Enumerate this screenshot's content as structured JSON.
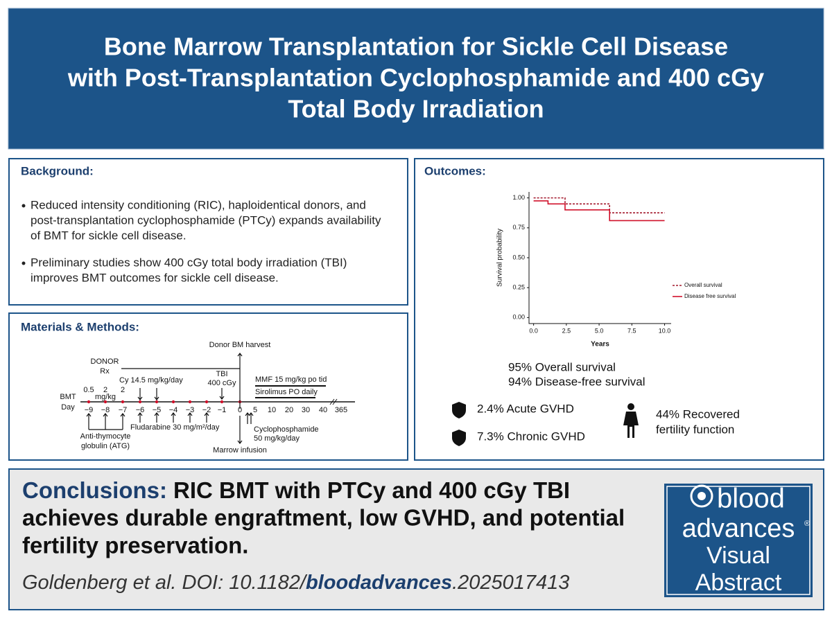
{
  "header": {
    "title_lines": [
      "Bone Marrow Transplantation for Sickle Cell Disease",
      "with Post-Transplantation Cyclophosphamide and 400 cGy",
      "Total Body Irradiation"
    ]
  },
  "background": {
    "heading": "Background:",
    "bullets": [
      [
        "Reduced intensity conditioning (RIC), haploidentical donors, and",
        "post-transplantation cyclophosphamide (PTCy) expands availability",
        "of BMT for sickle cell disease."
      ],
      [
        "Preliminary studies show 400 cGy total body irradiation (TBI)",
        "improves BMT outcomes for sickle cell disease."
      ]
    ]
  },
  "methods": {
    "heading": "Materials & Methods:",
    "diagram": {
      "labels": [
        "Donor BM harvest",
        "DONOR",
        "Rx",
        "TBI",
        "400 cGy",
        "0.5",
        "2",
        "mg/kg",
        "Cy 14.5 mg/kg/day",
        "2",
        "MMF 15 mg/kg po tid",
        "Sirolimus PO daily",
        "BMT",
        "Day",
        "Fludarabine 30 mg/m²/day",
        "Anti-thymocyte",
        "globulin (ATG)",
        "Cyclophosphamide",
        "50 mg/kg/day",
        "Marrow infusion"
      ],
      "days": [
        "−9",
        "−8",
        "−7",
        "−6",
        "−5",
        "−4",
        "−3",
        "−2",
        "−1",
        "0",
        "5",
        "10",
        "20",
        "30",
        "40",
        "365"
      ]
    }
  },
  "outcomes": {
    "heading": "Outcomes:",
    "survival": [
      "95% Overall survival",
      "94% Disease-free survival"
    ],
    "gvhd": [
      "2.4% Acute GVHD",
      "7.3% Chronic GVHD"
    ],
    "fertility": [
      "44% Recovered",
      "fertility function"
    ]
  },
  "chart_data": {
    "type": "step",
    "xlabel": "Years",
    "ylabel": "Survival probability",
    "xlim": [
      -0.35,
      10.5
    ],
    "ylim": [
      -0.05,
      1.05
    ],
    "xticks": [
      {
        "value": 0,
        "label": "0.0"
      },
      {
        "value": 2.5,
        "label": "2.5"
      },
      {
        "value": 5,
        "label": "5.0"
      },
      {
        "value": 7.5,
        "label": "7.5"
      },
      {
        "value": 10,
        "label": "10.0"
      }
    ],
    "yticks": [
      {
        "value": 0,
        "label": "0.00"
      },
      {
        "value": 0.25,
        "label": "0.25"
      },
      {
        "value": 0.5,
        "label": "0.50"
      },
      {
        "value": 0.75,
        "label": "0.75"
      },
      {
        "value": 1,
        "label": "1.00"
      }
    ],
    "legend": "right",
    "series": [
      {
        "name": "Overall survival",
        "color": "#a3182c",
        "style": "dotted",
        "x": [
          0,
          2.4,
          5.8,
          10
        ],
        "values": [
          1.0,
          0.95,
          0.875,
          0.875
        ]
      },
      {
        "name": "Disease free survival",
        "color": "#d0102a",
        "style": "solid",
        "x": [
          0,
          1.1,
          2.4,
          5.8,
          10
        ],
        "values": [
          0.975,
          0.95,
          0.9,
          0.81,
          0.81
        ]
      }
    ]
  },
  "conclusions": {
    "label": "Conclusions:",
    "lines": [
      "RIC BMT with PTCy and 400 cGy TBI",
      "achieves durable engraftment, low GVHD, and potential",
      "fertility preservation."
    ],
    "citation": [
      "Goldenberg et al. DOI: 10.1182/",
      "bloodadvances",
      ".2025017413"
    ]
  },
  "logo": {
    "lines": [
      "blood",
      "advances",
      "Visual",
      "Abstract"
    ],
    "mark": "®"
  }
}
